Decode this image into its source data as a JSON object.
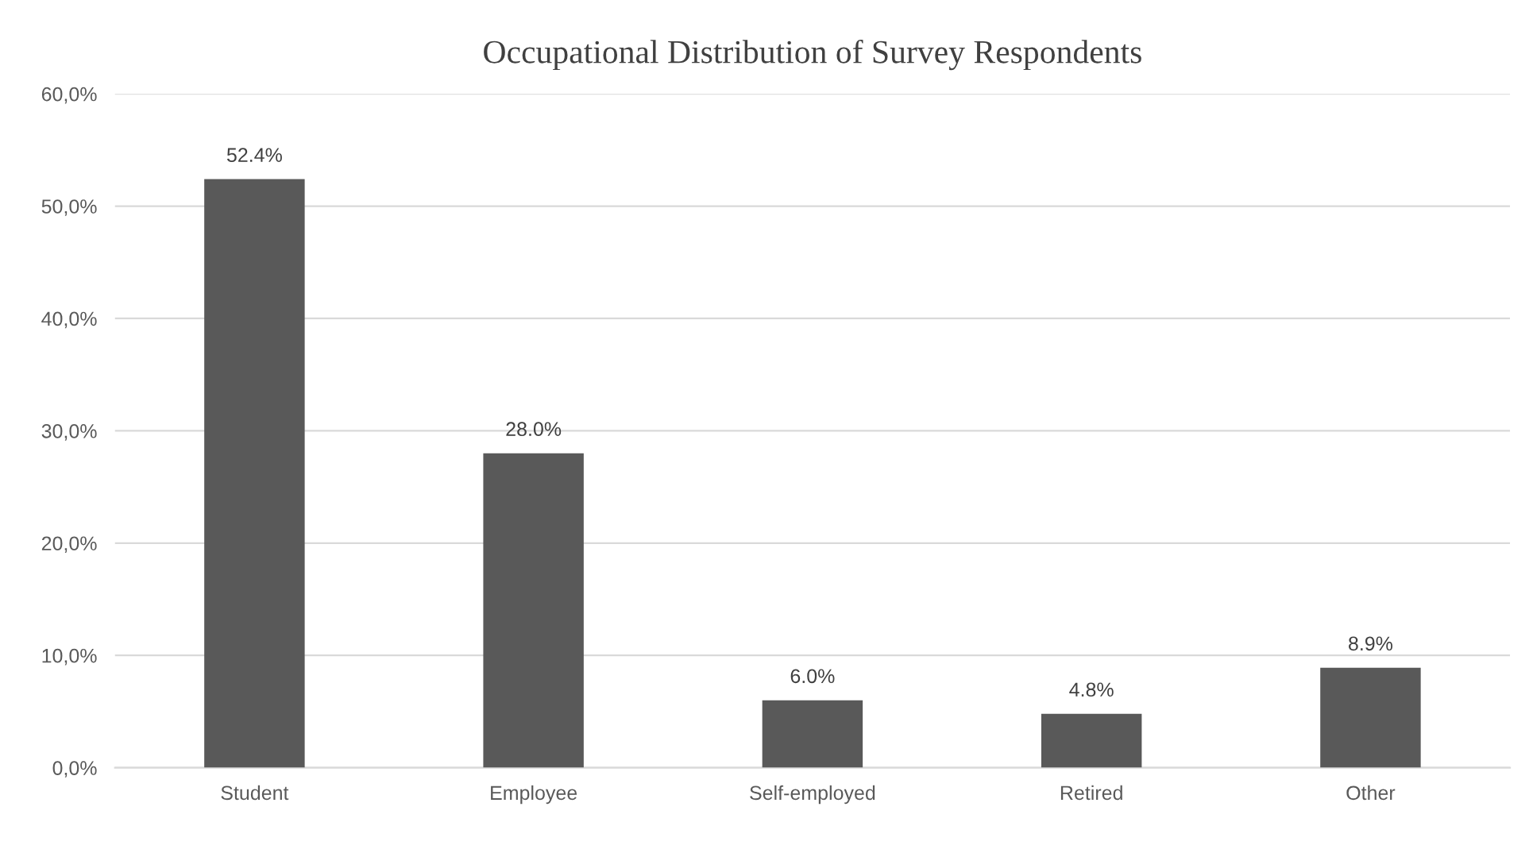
{
  "chart_data": {
    "type": "bar",
    "title": "Occupational Distribution of Survey Respondents",
    "categories": [
      "Student",
      "Employee",
      "Self-employed",
      "Retired",
      "Other"
    ],
    "values": [
      52.4,
      28.0,
      6.0,
      4.8,
      8.9
    ],
    "value_labels": [
      "52.4%",
      "28.0%",
      "6.0%",
      "4.8%",
      "8.9%"
    ],
    "color": "#595959",
    "ylim": [
      0,
      60
    ],
    "yticks": [
      {
        "value": 0,
        "label": "0,0%"
      },
      {
        "value": 10,
        "label": "10,0%"
      },
      {
        "value": 20,
        "label": "20,0%"
      },
      {
        "value": 30,
        "label": "30,0%"
      },
      {
        "value": 40,
        "label": "40,0%"
      },
      {
        "value": 50,
        "label": "50,0%"
      },
      {
        "value": 60,
        "label": "60,0%"
      }
    ],
    "grid": "y"
  }
}
